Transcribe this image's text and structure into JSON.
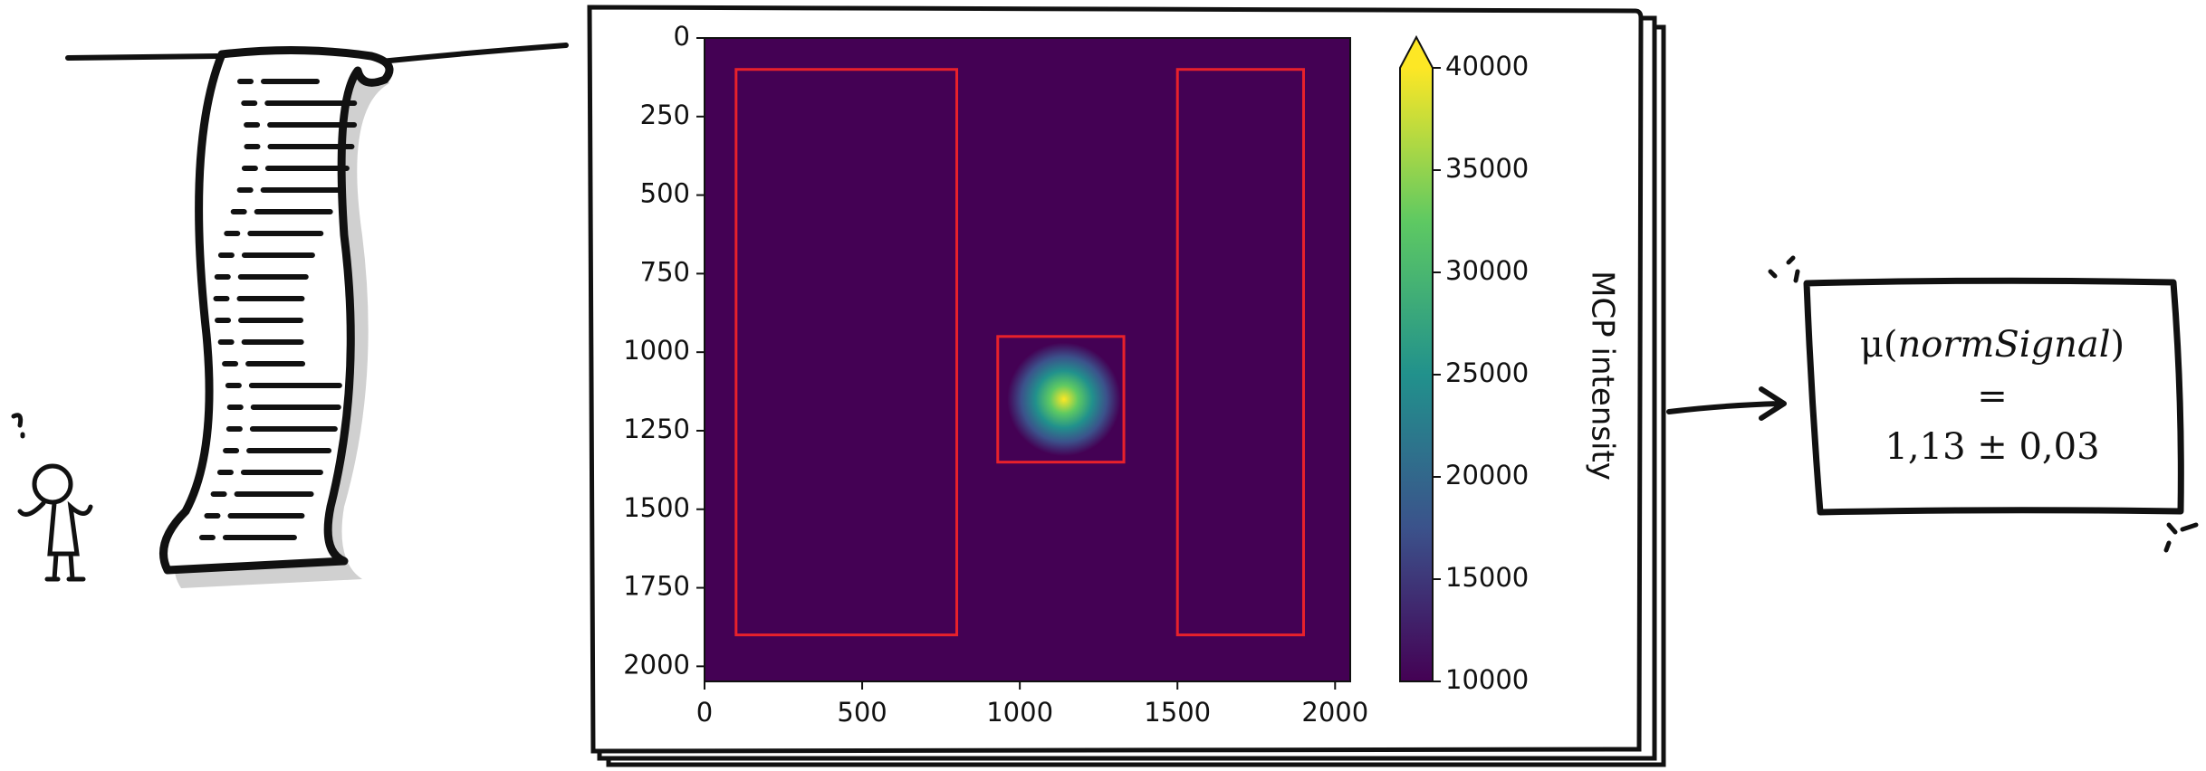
{
  "chart_data": {
    "type": "image",
    "xlim": [
      0,
      2048
    ],
    "ylim": [
      2048,
      0
    ],
    "xticks": [
      0,
      500,
      1000,
      1500,
      2000
    ],
    "yticks": [
      0,
      250,
      500,
      750,
      1000,
      1250,
      1500,
      1750,
      2000
    ],
    "background": 10000,
    "spot": {
      "x": 1140,
      "y": 1150,
      "peak": 40000,
      "sigma": 60
    },
    "rois": [
      {
        "x0": 100,
        "y0": 100,
        "x1": 800,
        "y1": 1900
      },
      {
        "x0": 930,
        "y0": 950,
        "x1": 1330,
        "y1": 1350
      },
      {
        "x0": 1500,
        "y0": 100,
        "x1": 1900,
        "y1": 1900
      }
    ],
    "roi_color": "#e8212b",
    "colormap": [
      "#440154",
      "#3b528b",
      "#21918c",
      "#5ec962",
      "#fde725"
    ],
    "colorbar": {
      "label": "MCP intensity",
      "clim": [
        10000,
        40000
      ],
      "ticks": [
        10000,
        15000,
        20000,
        25000,
        30000,
        35000,
        40000
      ],
      "extend": "max"
    }
  },
  "result": {
    "prefix": "μ(",
    "variable": "normSignal",
    "suffix": ")",
    "equals": "=",
    "value": "1,13 ± 0,03"
  }
}
